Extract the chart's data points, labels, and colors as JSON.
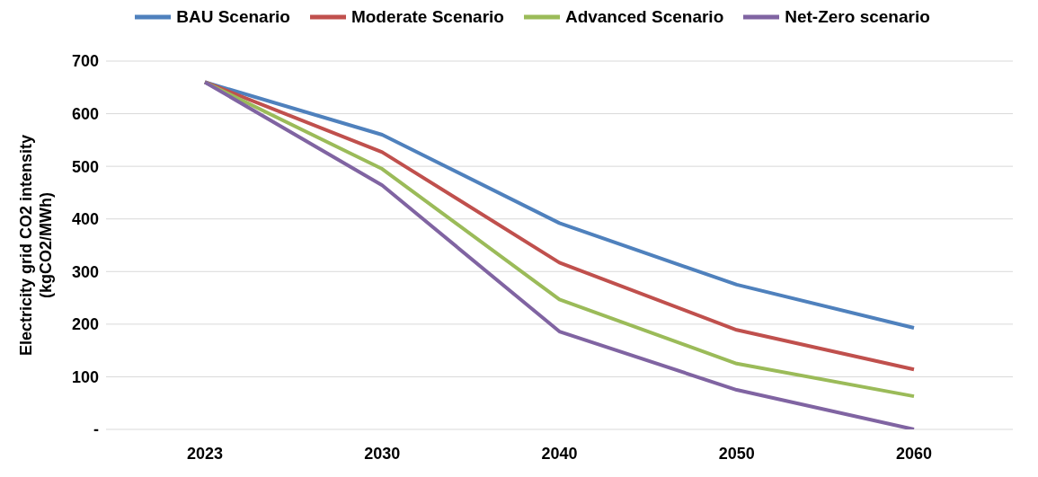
{
  "chart_data": {
    "type": "line",
    "ylabel": "Electricity grid  CO2 intensity\n(kgCO2/MWh)",
    "categories": [
      "2023",
      "2030",
      "2040",
      "2050",
      "2060"
    ],
    "series": [
      {
        "name": "BAU Scenario",
        "color": "#4f81bd",
        "values": [
          660,
          560,
          392,
          275,
          193
        ]
      },
      {
        "name": "Moderate Scenario",
        "color": "#c0504d",
        "values": [
          660,
          527,
          317,
          189,
          114
        ]
      },
      {
        "name": "Advanced Scenario",
        "color": "#9bbb59",
        "values": [
          660,
          495,
          247,
          125,
          63
        ]
      },
      {
        "name": "Net-Zero scenario",
        "color": "#8064a2",
        "values": [
          660,
          464,
          186,
          75,
          0
        ]
      }
    ],
    "ylim": [
      0,
      700
    ],
    "yticks": [
      {
        "value": 0,
        "label": "-"
      },
      100,
      200,
      300,
      400,
      500,
      600,
      700
    ],
    "grid": "y",
    "legend": "top",
    "marker": "none",
    "line_style": "solid"
  }
}
